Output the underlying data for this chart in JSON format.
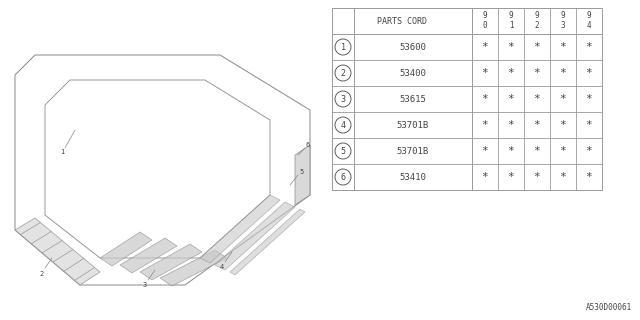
{
  "bg_color": "#ffffff",
  "parts": [
    {
      "num": "1",
      "code": "53600"
    },
    {
      "num": "2",
      "code": "53400"
    },
    {
      "num": "3",
      "code": "53615"
    },
    {
      "num": "4",
      "code": "53701B"
    },
    {
      "num": "5",
      "code": "53701B"
    },
    {
      "num": "6",
      "code": "53410"
    }
  ],
  "year_cols": [
    "9\n0",
    "9\n1",
    "9\n2",
    "9\n3",
    "9\n4"
  ],
  "footer_text": "A530D00061",
  "table_lc": "#999999",
  "diag_lc": "#888888",
  "text_color": "#444444"
}
